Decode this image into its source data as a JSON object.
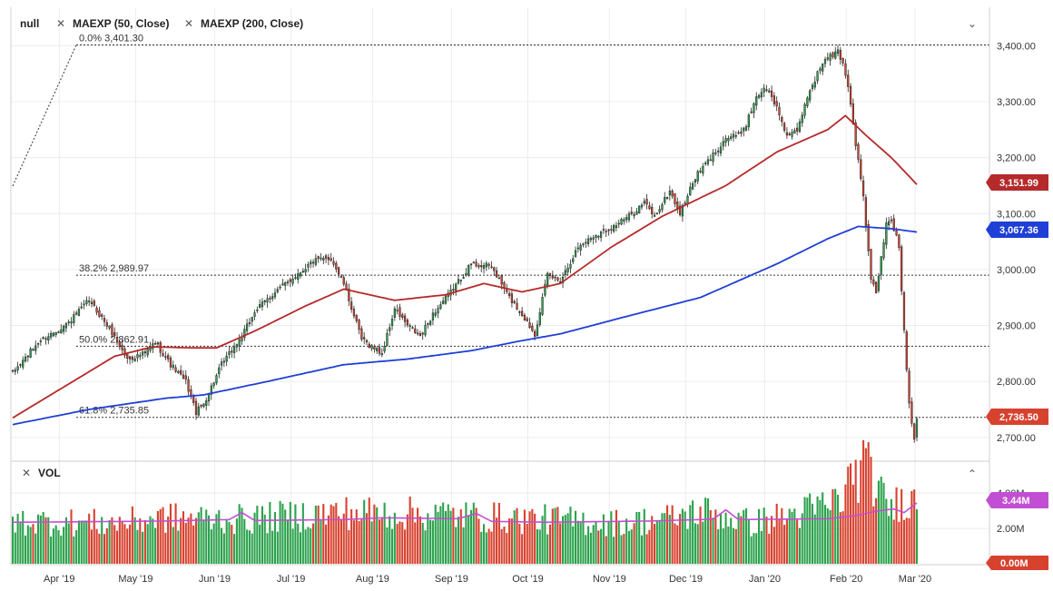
{
  "legend": {
    "symbol": "null",
    "indicators": [
      "MAEXP (50, Close)",
      "MAEXP (200, Close)"
    ]
  },
  "volume_panel": {
    "label": "VOL"
  },
  "colors": {
    "up": "#2ca24d",
    "down": "#d7422f",
    "ma50": "#b52a2a",
    "ma200": "#1f3fd6",
    "vol_ma": "#c24fd3",
    "grid": "#ececec",
    "fib": "#333333"
  },
  "badges": {
    "ma50": "3,151.99",
    "ma200": "3,067.36",
    "last": "2,736.50",
    "vol_ma": "3.44M",
    "vol_min": "0.00M"
  },
  "chart_data": [
    {
      "type": "candlestick",
      "x_labels": [
        "Apr '19",
        "May '19",
        "Jun '19",
        "Jul '19",
        "Aug '19",
        "Sep '19",
        "Oct '19",
        "Nov '19",
        "Dec '19",
        "Jan '20",
        "Feb '20",
        "Mar '20"
      ],
      "y_ticks": [
        "3,400.00",
        "3,300.00",
        "3,200.00",
        "3,100.00",
        "3,000.00",
        "2,900.00",
        "2,800.00",
        "2,700.00"
      ],
      "y_tick_values": [
        3400,
        3300,
        3200,
        3100,
        3000,
        2900,
        2800,
        2700
      ],
      "ylim": [
        2690,
        3420
      ],
      "fibonacci": [
        {
          "label": "0.0% 3,401.30",
          "value": 3401.3
        },
        {
          "label": "38.2% 2,989.97",
          "value": 2989.97
        },
        {
          "label": "50.0% 2,862.91",
          "value": 2862.91
        },
        {
          "label": "61.8% 2,735.85",
          "value": 2735.85
        }
      ],
      "close_anchors": [
        [
          0,
          2815
        ],
        [
          10,
          2870
        ],
        [
          22,
          2905
        ],
        [
          30,
          2945
        ],
        [
          38,
          2895
        ],
        [
          45,
          2840
        ],
        [
          52,
          2850
        ],
        [
          56,
          2870
        ],
        [
          62,
          2830
        ],
        [
          68,
          2800
        ],
        [
          72,
          2745
        ],
        [
          75,
          2760
        ],
        [
          82,
          2830
        ],
        [
          90,
          2880
        ],
        [
          95,
          2925
        ],
        [
          103,
          2960
        ],
        [
          110,
          2985
        ],
        [
          118,
          3015
        ],
        [
          125,
          3020
        ],
        [
          130,
          2975
        ],
        [
          137,
          2875
        ],
        [
          145,
          2850
        ],
        [
          150,
          2930
        ],
        [
          155,
          2900
        ],
        [
          160,
          2880
        ],
        [
          165,
          2920
        ],
        [
          172,
          2960
        ],
        [
          180,
          3010
        ],
        [
          188,
          3005
        ],
        [
          195,
          2950
        ],
        [
          200,
          2920
        ],
        [
          205,
          2885
        ],
        [
          210,
          2990
        ],
        [
          215,
          2980
        ],
        [
          222,
          3040
        ],
        [
          228,
          3060
        ],
        [
          235,
          3075
        ],
        [
          242,
          3095
        ],
        [
          248,
          3120
        ],
        [
          252,
          3095
        ],
        [
          258,
          3140
        ],
        [
          262,
          3100
        ],
        [
          268,
          3165
        ],
        [
          275,
          3205
        ],
        [
          280,
          3235
        ],
        [
          285,
          3240
        ],
        [
          288,
          3260
        ],
        [
          292,
          3310
        ],
        [
          296,
          3325
        ],
        [
          300,
          3290
        ],
        [
          304,
          3240
        ],
        [
          308,
          3245
        ],
        [
          312,
          3310
        ],
        [
          318,
          3370
        ],
        [
          321,
          3380
        ],
        [
          324,
          3390
        ],
        [
          326,
          3368
        ],
        [
          328,
          3330
        ],
        [
          331,
          3225
        ],
        [
          334,
          3130
        ],
        [
          337,
          2980
        ],
        [
          339,
          2960
        ],
        [
          341,
          3020
        ],
        [
          343,
          3080
        ],
        [
          345,
          3090
        ],
        [
          348,
          3040
        ],
        [
          350,
          2890
        ],
        [
          352,
          2760
        ],
        [
          354,
          2700
        ],
        [
          355,
          2736.5
        ]
      ],
      "series": [
        {
          "name": "MAEXP (50, Close)",
          "anchors": [
            [
              0,
              2735
            ],
            [
              20,
              2790
            ],
            [
              40,
              2845
            ],
            [
              55,
              2862
            ],
            [
              70,
              2860
            ],
            [
              80,
              2860
            ],
            [
              95,
              2890
            ],
            [
              115,
              2935
            ],
            [
              130,
              2965
            ],
            [
              150,
              2945
            ],
            [
              170,
              2955
            ],
            [
              185,
              2975
            ],
            [
              200,
              2960
            ],
            [
              215,
              2975
            ],
            [
              235,
              3040
            ],
            [
              255,
              3095
            ],
            [
              280,
              3150
            ],
            [
              300,
              3210
            ],
            [
              320,
              3250
            ],
            [
              327,
              3275
            ],
            [
              335,
              3240
            ],
            [
              345,
              3200
            ],
            [
              355,
              3152
            ]
          ]
        },
        {
          "name": "MAEXP (200, Close)",
          "anchors": [
            [
              0,
              2723
            ],
            [
              30,
              2750
            ],
            [
              60,
              2770
            ],
            [
              75,
              2776
            ],
            [
              100,
              2800
            ],
            [
              130,
              2830
            ],
            [
              155,
              2840
            ],
            [
              180,
              2855
            ],
            [
              200,
              2873
            ],
            [
              215,
              2885
            ],
            [
              240,
              2915
            ],
            [
              270,
              2950
            ],
            [
              300,
              3010
            ],
            [
              320,
              3055
            ],
            [
              332,
              3077
            ],
            [
              345,
              3073
            ],
            [
              355,
              3067
            ]
          ]
        }
      ]
    },
    {
      "type": "bar",
      "name": "VOL",
      "y_ticks": [
        "4.00M",
        "2.00M"
      ],
      "y_tick_values": [
        4.0,
        2.0
      ],
      "ylim": [
        0,
        5.6
      ],
      "volume_anchors": [
        [
          0,
          2.4
        ],
        [
          40,
          2.3
        ],
        [
          60,
          2.6
        ],
        [
          90,
          2.5
        ],
        [
          130,
          2.9
        ],
        [
          170,
          2.8
        ],
        [
          190,
          2.6
        ],
        [
          210,
          2.5
        ],
        [
          240,
          2.3
        ],
        [
          260,
          2.6
        ],
        [
          270,
          3.0
        ],
        [
          290,
          2.3
        ],
        [
          310,
          2.9
        ],
        [
          325,
          3.6
        ],
        [
          330,
          5.0
        ],
        [
          334,
          5.5
        ],
        [
          338,
          4.8
        ],
        [
          342,
          3.5
        ],
        [
          346,
          3.2
        ],
        [
          350,
          3.8
        ],
        [
          355,
          3.4
        ]
      ],
      "volume_ma_anchors": [
        [
          0,
          2.35
        ],
        [
          30,
          2.38
        ],
        [
          60,
          2.42
        ],
        [
          85,
          2.5
        ],
        [
          90,
          2.9
        ],
        [
          95,
          2.45
        ],
        [
          130,
          2.5
        ],
        [
          145,
          2.6
        ],
        [
          175,
          2.55
        ],
        [
          182,
          2.85
        ],
        [
          188,
          2.4
        ],
        [
          210,
          2.35
        ],
        [
          250,
          2.42
        ],
        [
          275,
          2.52
        ],
        [
          280,
          3.05
        ],
        [
          285,
          2.5
        ],
        [
          320,
          2.55
        ],
        [
          330,
          2.7
        ],
        [
          340,
          3.0
        ],
        [
          346,
          3.1
        ],
        [
          350,
          2.9
        ],
        [
          355,
          3.44
        ]
      ]
    }
  ]
}
